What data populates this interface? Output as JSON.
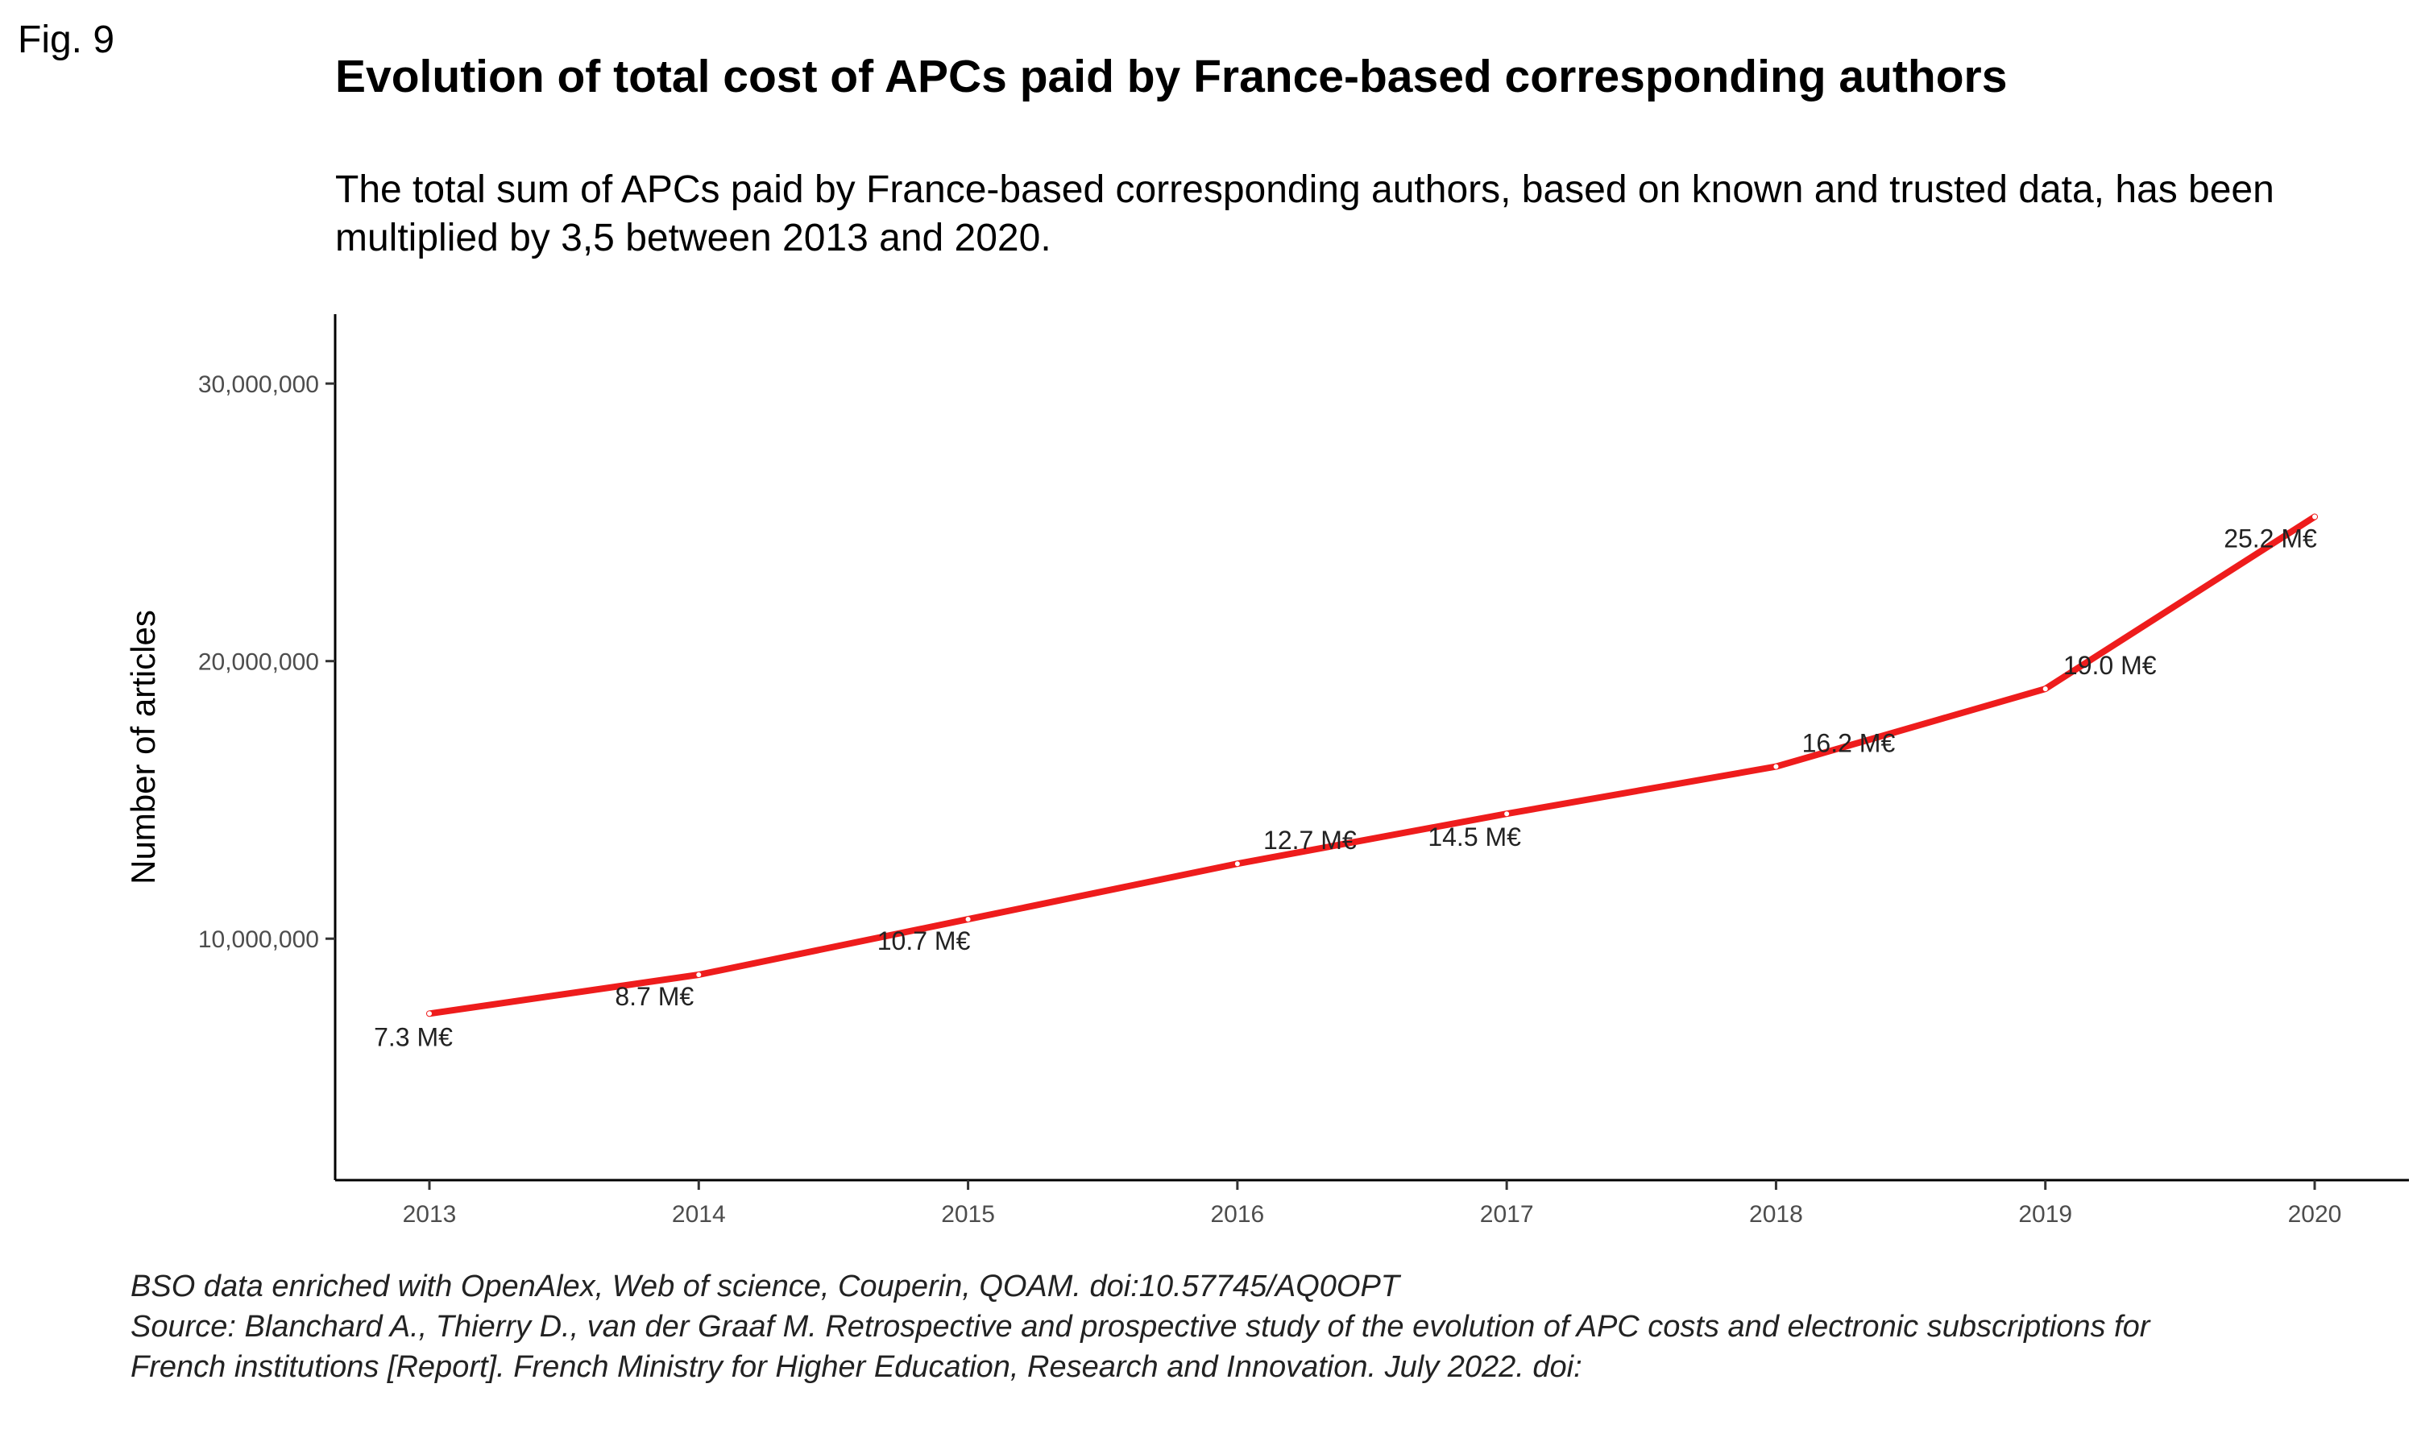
{
  "figure": {
    "label": "Fig. 9",
    "title": "Evolution of total cost of APCs paid by France-based corresponding authors",
    "subtitle": "The total sum of APCs paid by France-based corresponding authors, based on known and trusted data, has been multiplied by 3,5 between 2013 and 2020.",
    "caption_lines": [
      "BSO data enriched with OpenAlex, Web of science, Couperin, QOAM. doi:10.57745/AQ0OPT",
      "Source: Blanchard A., Thierry D., van der Graaf M. Retrospective and prospective study of the evolution of APC costs and electronic subscriptions for",
      "French institutions [Report]. French Ministry for Higher Education, Research and Innovation. July 2022. doi:"
    ]
  },
  "chart_data": {
    "type": "line",
    "title": "Evolution of total cost of APCs paid by France-based corresponding authors",
    "xlabel": "",
    "ylabel": "Number of articles",
    "x": [
      2013,
      2014,
      2015,
      2016,
      2017,
      2018,
      2019,
      2020
    ],
    "series": [
      {
        "values": [
          7300000,
          8700000,
          10700000,
          12700000,
          14500000,
          16200000,
          19000000,
          25200000
        ],
        "labels": [
          "7.3 M€",
          "8.7 M€",
          "10.7 M€",
          "12.7 M€",
          "14.5 M€",
          "16.2 M€",
          "19.0 M€",
          "25.2 M€"
        ],
        "color": "#ee1c1c"
      }
    ],
    "xlim": [
      2012.65,
      2020.35
    ],
    "ylim": [
      1300000,
      32500000
    ],
    "yticks": [
      10000000,
      20000000,
      30000000
    ],
    "ytick_labels": [
      "10,000,000",
      "20,000,000",
      "30,000,000"
    ],
    "xticks": [
      2013,
      2014,
      2015,
      2016,
      2017,
      2018,
      2019,
      2020
    ],
    "xtick_labels": [
      "2013",
      "2014",
      "2015",
      "2016",
      "2017",
      "2018",
      "2019",
      "2020"
    ],
    "grid": false,
    "legend": "none"
  }
}
